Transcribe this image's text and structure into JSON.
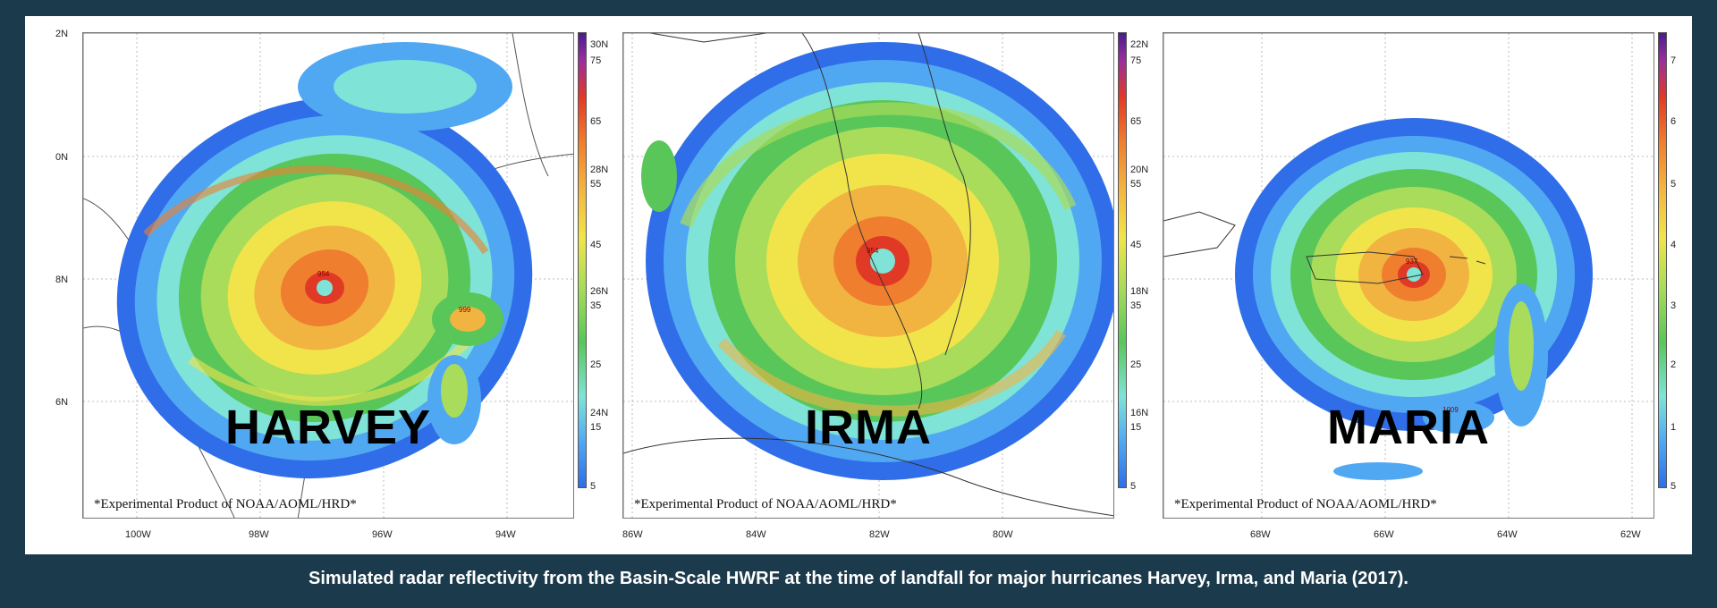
{
  "caption": "Simulated radar reflectivity from the Basin-Scale HWRF at the time of landfall for major hurricanes Harvey, Irma, and Maria (2017).",
  "footnote": "*Experimental Product of NOAA/AOML/HRD*",
  "reflectivity_colors": [
    "#2f6ee8",
    "#51a8f2",
    "#7fe3d7",
    "#59c65a",
    "#a8dc5a",
    "#f1e44b",
    "#f2b441",
    "#ef7e2e",
    "#e03a26",
    "#9a2f9c",
    "#4b1b8f"
  ],
  "panels": [
    {
      "name": "HARVEY",
      "lat_labels": [
        "2N",
        "0N",
        "8N",
        "6N"
      ],
      "lon_labels": [
        "100W",
        "98W",
        "96W",
        "94W"
      ],
      "colorbar_labels": [
        "30N",
        "75",
        "65",
        "28N",
        "55",
        "45",
        "26N",
        "35",
        "25",
        "24N",
        "15",
        "5"
      ]
    },
    {
      "name": "IRMA",
      "lat_labels": [],
      "lon_labels": [
        "86W",
        "84W",
        "82W",
        "80W"
      ],
      "colorbar_labels": [
        "22N",
        "75",
        "65",
        "20N",
        "55",
        "45",
        "18N",
        "35",
        "25",
        "16N",
        "15",
        "5"
      ]
    },
    {
      "name": "MARIA",
      "lat_labels": [],
      "lon_labels": [
        "68W",
        "66W",
        "64W",
        "62W"
      ],
      "colorbar_labels": [
        "7",
        "6",
        "5",
        "4",
        "3",
        "2",
        "1",
        "5"
      ]
    }
  ],
  "storm_labels": [
    "954",
    "999",
    "937",
    "1009"
  ]
}
